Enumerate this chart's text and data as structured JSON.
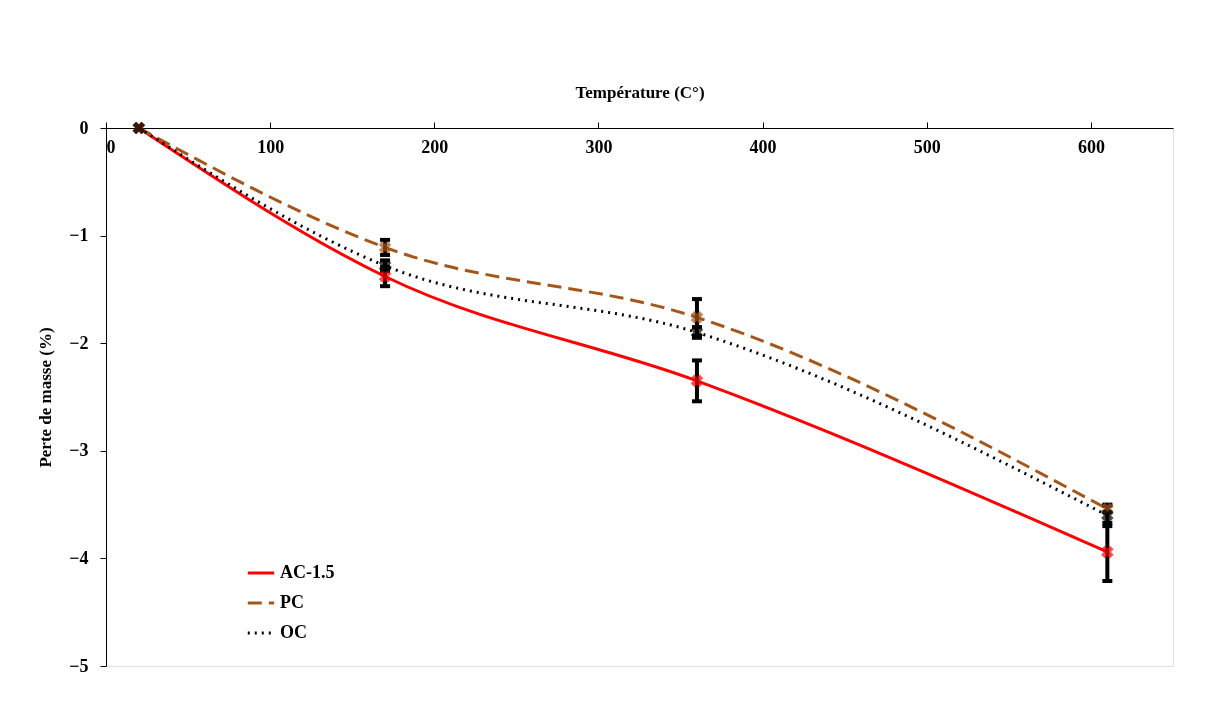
{
  "chart_data": {
    "type": "line",
    "xlabel": "Température (C°)",
    "ylabel": "Perte de masse (%)",
    "x": [
      20,
      170,
      360,
      610
    ],
    "xlim": [
      0,
      650
    ],
    "xticks": [
      0,
      100,
      200,
      300,
      400,
      500,
      600
    ],
    "ylim": [
      -5,
      0
    ],
    "yticks": [
      -5,
      -4,
      -3,
      -2,
      -1,
      0
    ],
    "grid": false,
    "legend": "bottom left",
    "marker": "cross",
    "series": [
      {
        "name": "AC-1.5",
        "color": "#ff0000",
        "line_style": "solid",
        "values": [
          0,
          -1.38,
          -2.35,
          -3.94
        ],
        "errors": [
          null,
          0.09,
          0.19,
          0.27
        ]
      },
      {
        "name": "PC",
        "color": "#a5561a",
        "line_style": "dashed",
        "values": [
          0,
          -1.11,
          -1.76,
          -3.54
        ],
        "errors": [
          null,
          0.07,
          0.17,
          0.03
        ]
      },
      {
        "name": "OC",
        "color": "#000000",
        "line_style": "dotted",
        "values": [
          0,
          -1.28,
          -1.9,
          -3.6
        ],
        "errors": [
          null,
          0.05,
          0.05,
          0.1
        ]
      }
    ]
  }
}
